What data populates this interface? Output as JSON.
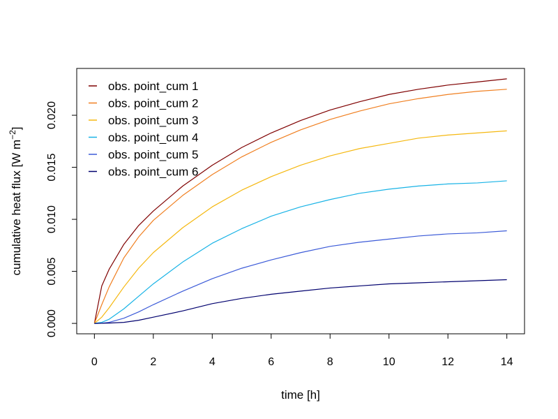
{
  "chart_data": {
    "type": "line",
    "xlabel": "time [h]",
    "ylabel": {
      "main": "cumulative heat flux [W m",
      "sup": "−2",
      "end": "]"
    },
    "xlim": [
      -0.6,
      14.6
    ],
    "ylim": [
      -0.001,
      0.0245
    ],
    "xticks": [
      0,
      2,
      4,
      6,
      8,
      10,
      12,
      14
    ],
    "xtick_labels": [
      "0",
      "2",
      "4",
      "6",
      "8",
      "10",
      "12",
      "14"
    ],
    "yticks": [
      0,
      0.005,
      0.01,
      0.015,
      0.02
    ],
    "ytick_labels": [
      "0.000",
      "0.005",
      "0.010",
      "0.015",
      "0.020"
    ],
    "grid": false,
    "legend_position": "top-left",
    "x": [
      0,
      0.25,
      0.5,
      1,
      1.5,
      2,
      3,
      4,
      5,
      6,
      7,
      8,
      9,
      10,
      11,
      12,
      13,
      14
    ],
    "series": [
      {
        "name": "obs. point_cum 1",
        "color": "#7f0000",
        "values": [
          0,
          0.0036,
          0.0052,
          0.0076,
          0.0094,
          0.0108,
          0.0132,
          0.0152,
          0.0169,
          0.0183,
          0.0195,
          0.0205,
          0.0213,
          0.022,
          0.0225,
          0.0229,
          0.0232,
          0.0235
        ]
      },
      {
        "name": "obs. point_cum 2",
        "color": "#f07f20",
        "values": [
          0,
          0.0018,
          0.0035,
          0.0063,
          0.0083,
          0.0099,
          0.0123,
          0.0143,
          0.016,
          0.0174,
          0.0186,
          0.0196,
          0.0204,
          0.0211,
          0.0216,
          0.022,
          0.0223,
          0.0225
        ]
      },
      {
        "name": "obs. point_cum 3",
        "color": "#f5b810",
        "values": [
          0,
          0.0006,
          0.0015,
          0.0035,
          0.0053,
          0.0068,
          0.0092,
          0.0112,
          0.0128,
          0.0141,
          0.0152,
          0.0161,
          0.0168,
          0.0173,
          0.0178,
          0.0181,
          0.0183,
          0.0185
        ]
      },
      {
        "name": "obs. point_cum 4",
        "color": "#18b3e6",
        "values": [
          0,
          0.0001,
          0.0004,
          0.0014,
          0.0026,
          0.0038,
          0.0059,
          0.0077,
          0.0091,
          0.0103,
          0.0112,
          0.0119,
          0.0125,
          0.0129,
          0.0132,
          0.0134,
          0.0135,
          0.0137
        ]
      },
      {
        "name": "obs. point_cum 5",
        "color": "#3c5bd8",
        "values": [
          0,
          2e-05,
          0.0001,
          0.0005,
          0.0011,
          0.0018,
          0.0031,
          0.0043,
          0.0053,
          0.0061,
          0.0068,
          0.0074,
          0.0078,
          0.0081,
          0.0084,
          0.0086,
          0.0087,
          0.0089
        ]
      },
      {
        "name": "obs. point_cum 6",
        "color": "#00006e",
        "values": [
          0,
          1e-05,
          3e-05,
          0.0001,
          0.0003,
          0.0006,
          0.0012,
          0.0019,
          0.0024,
          0.0028,
          0.0031,
          0.0034,
          0.0036,
          0.0038,
          0.0039,
          0.004,
          0.0041,
          0.0042
        ]
      }
    ]
  }
}
